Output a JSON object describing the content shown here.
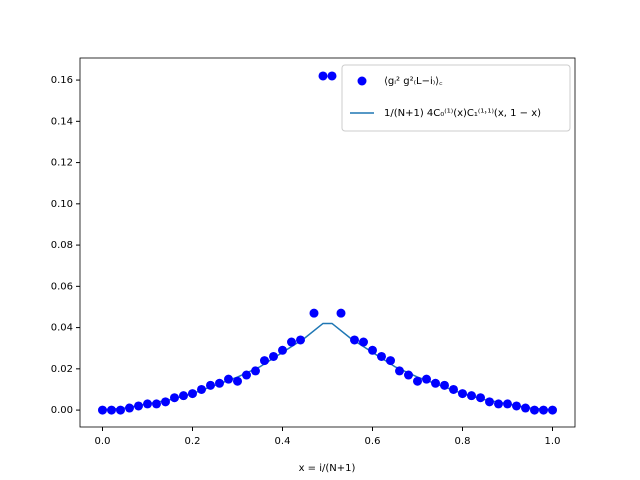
{
  "chart_data": {
    "type": "scatter",
    "x_label": "x = i/(N+1)",
    "xlim": [
      -0.05,
      1.05
    ],
    "ylim": [
      -0.0082,
      0.1707
    ],
    "xticks": [
      {
        "value": 0,
        "label": "0.0"
      },
      {
        "value": 0.2,
        "label": "0.2"
      },
      {
        "value": 0.4,
        "label": "0.4"
      },
      {
        "value": 0.6,
        "label": "0.6"
      },
      {
        "value": 0.8,
        "label": "0.8"
      },
      {
        "value": 1,
        "label": "1.0"
      }
    ],
    "yticks": [
      {
        "value": 0,
        "label": "0.00"
      },
      {
        "value": 0.02,
        "label": "0.02"
      },
      {
        "value": 0.04,
        "label": "0.04"
      },
      {
        "value": 0.06,
        "label": "0.06"
      },
      {
        "value": 0.08,
        "label": "0.08"
      },
      {
        "value": 0.1,
        "label": "0.10"
      },
      {
        "value": 0.12,
        "label": "0.12"
      },
      {
        "value": 0.14,
        "label": "0.14"
      },
      {
        "value": 0.16,
        "label": "0.16"
      }
    ],
    "legend": "upper right",
    "series": [
      {
        "name": "⟨gᵢ² g²₍L−i₎⟩꜀",
        "type": "scatter",
        "color": "#0000ff",
        "x": [
          0,
          0.02,
          0.04,
          0.06,
          0.08,
          0.1,
          0.12,
          0.14,
          0.16,
          0.18,
          0.2,
          0.22,
          0.24,
          0.26,
          0.28,
          0.3,
          0.32,
          0.34,
          0.36,
          0.38,
          0.4,
          0.42,
          0.44,
          0.47,
          0.49,
          0.51,
          0.53,
          0.56,
          0.58,
          0.6,
          0.62,
          0.64,
          0.66,
          0.68,
          0.7,
          0.72,
          0.74,
          0.76,
          0.78,
          0.8,
          0.82,
          0.84,
          0.86,
          0.88,
          0.9,
          0.92,
          0.94,
          0.96,
          0.98,
          1.0
        ],
        "values": [
          0,
          0,
          0,
          0.001,
          0.002,
          0.003,
          0.003,
          0.004,
          0.006,
          0.007,
          0.008,
          0.01,
          0.012,
          0.013,
          0.015,
          0.014,
          0.017,
          0.019,
          0.024,
          0.026,
          0.029,
          0.033,
          0.034,
          0.047,
          0.162,
          0.162,
          0.047,
          0.034,
          0.033,
          0.029,
          0.026,
          0.024,
          0.019,
          0.017,
          0.014,
          0.015,
          0.013,
          0.012,
          0.01,
          0.008,
          0.007,
          0.006,
          0.004,
          0.003,
          0.003,
          0.002,
          0.001,
          0,
          0,
          0
        ]
      },
      {
        "name": "1/(N+1) 4C₀⁽¹⁾(x)C₁⁽¹˒¹⁾(x, 1 − x)",
        "type": "line",
        "color": "#1f77b4",
        "x": [
          0,
          0.05,
          0.1,
          0.15,
          0.2,
          0.25,
          0.3,
          0.35,
          0.4,
          0.45,
          0.49,
          0.51,
          0.55,
          0.6,
          0.65,
          0.7,
          0.75,
          0.8,
          0.85,
          0.9,
          0.95,
          1.0
        ],
        "values": [
          0,
          0.001,
          0.003,
          0.005,
          0.008,
          0.012,
          0.016,
          0.021,
          0.028,
          0.035,
          0.042,
          0.042,
          0.035,
          0.028,
          0.021,
          0.016,
          0.012,
          0.008,
          0.005,
          0.003,
          0.001,
          0
        ]
      }
    ]
  }
}
